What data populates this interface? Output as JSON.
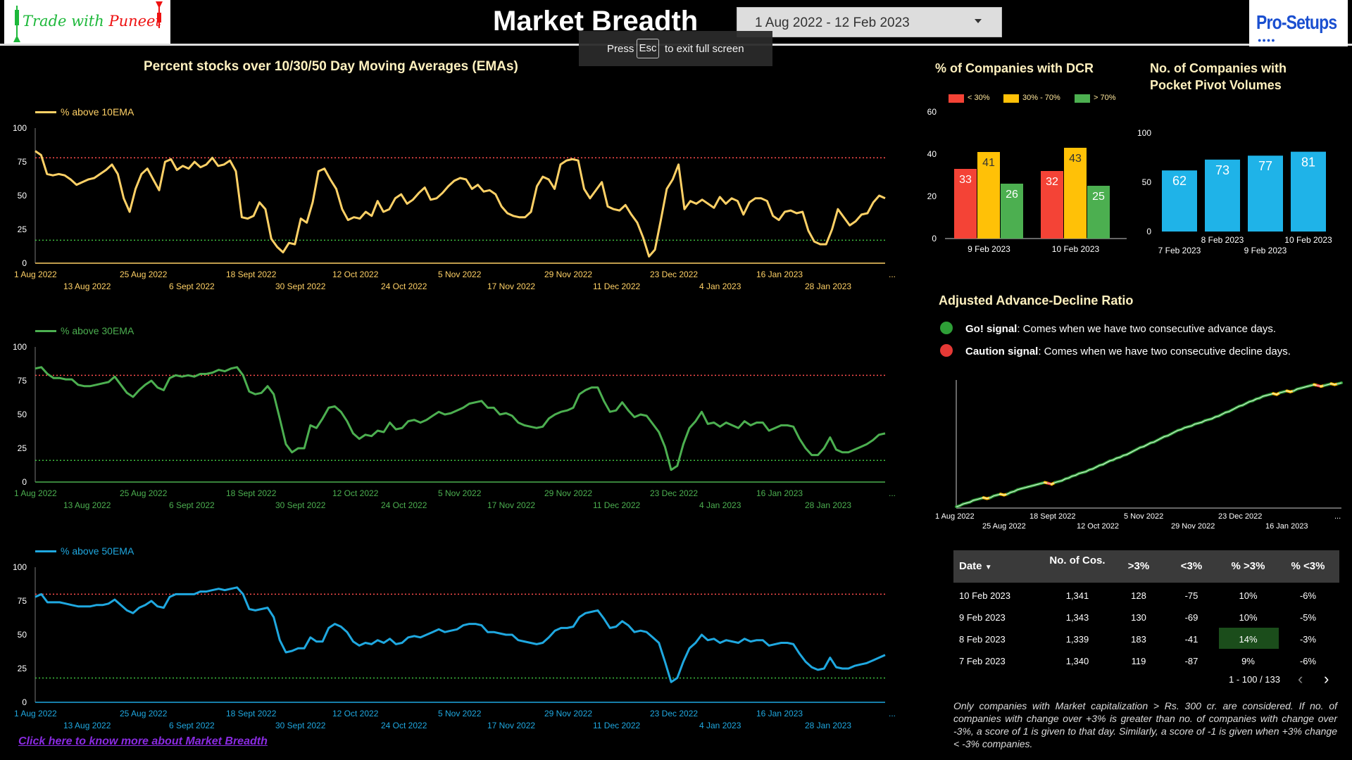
{
  "header": {
    "brand_part1": "Trade with ",
    "brand_part2": "Puneet",
    "title": "Market Breadth",
    "date_range": "1 Aug 2022 - 12 Feb 2023",
    "logo_text": "Pro-Setups",
    "logo_dots": "●●●●",
    "toast_press": "Press",
    "toast_key": "Esc",
    "toast_rest": "to exit full screen"
  },
  "ema_section": {
    "title": "Percent stocks over 10/30/50 Day Moving Averages (EMAs)"
  },
  "colors": {
    "ema10": "#ffd166",
    "ema30": "#4caf50",
    "ema50": "#1fa8e0",
    "upper_ref": "#ff4d4d",
    "lower_ref": "#3fbf3f",
    "dcr_low": "#f44336",
    "dcr_mid": "#ffc107",
    "dcr_high": "#4caf50",
    "ppv": "#1fb3e8",
    "go": "#2e9e37",
    "caution": "#e53935",
    "highlight": "#1b4d1b"
  },
  "chart_data": [
    {
      "id": "ema10",
      "type": "line",
      "series": [
        {
          "name": "% above 10EMA"
        }
      ],
      "ylim": [
        0,
        100
      ],
      "yticks": [
        "0",
        "25",
        "50",
        "75",
        "100"
      ],
      "upper_ref": 78,
      "lower_ref": 17,
      "x_labels_row1": [
        "1 Aug 2022",
        "25 Aug 2022",
        "18 Sept 2022",
        "12 Oct 2022",
        "5 Nov 2022",
        "29 Nov 2022",
        "23 Dec 2022",
        "16 Jan 2023",
        "..."
      ],
      "x_labels_row2": [
        "13 Aug 2022",
        "6 Sept 2022",
        "30 Sept 2022",
        "24 Oct 2022",
        "17 Nov 2022",
        "11 Dec 2022",
        "4 Jan 2023",
        "28 Jan 2023"
      ],
      "values": [
        83,
        80,
        66,
        65,
        66,
        65,
        62,
        58,
        60,
        62,
        63,
        66,
        69,
        73,
        66,
        48,
        38,
        55,
        66,
        70,
        62,
        54,
        75,
        77,
        69,
        72,
        70,
        75,
        71,
        73,
        78,
        72,
        73,
        76,
        68,
        34,
        33,
        35,
        45,
        40,
        18,
        12,
        8,
        15,
        14,
        33,
        30,
        45,
        68,
        70,
        62,
        55,
        40,
        32,
        34,
        33,
        38,
        35,
        46,
        38,
        40,
        48,
        51,
        44,
        47,
        52,
        56,
        47,
        48,
        52,
        57,
        61,
        63,
        62,
        55,
        58,
        53,
        54,
        51,
        42,
        37,
        35,
        34,
        34,
        38,
        57,
        64,
        62,
        55,
        73,
        76,
        77,
        76,
        55,
        48,
        54,
        60,
        42,
        40,
        39,
        43,
        36,
        30,
        19,
        5,
        10,
        32,
        55,
        62,
        73,
        40,
        46,
        44,
        47,
        44,
        41,
        49,
        44,
        48,
        46,
        36,
        45,
        48,
        48,
        46,
        35,
        32,
        38,
        39,
        37,
        38,
        24,
        16,
        14,
        14,
        25,
        40,
        34,
        28,
        31,
        36,
        37,
        45,
        50,
        48
      ]
    },
    {
      "id": "ema30",
      "type": "line",
      "series": [
        {
          "name": "% above 30EMA"
        }
      ],
      "ylim": [
        0,
        100
      ],
      "yticks": [
        "0",
        "25",
        "50",
        "75",
        "100"
      ],
      "upper_ref": 79,
      "lower_ref": 16,
      "x_labels_row1": [
        "1 Aug 2022",
        "25 Aug 2022",
        "18 Sept 2022",
        "12 Oct 2022",
        "5 Nov 2022",
        "29 Nov 2022",
        "23 Dec 2022",
        "16 Jan 2023",
        "..."
      ],
      "x_labels_row2": [
        "13 Aug 2022",
        "6 Sept 2022",
        "30 Sept 2022",
        "24 Oct 2022",
        "17 Nov 2022",
        "11 Dec 2022",
        "4 Jan 2023",
        "28 Jan 2023"
      ],
      "values": [
        84,
        85,
        80,
        77,
        77,
        76,
        76,
        72,
        71,
        71,
        72,
        73,
        74,
        78,
        72,
        66,
        63,
        68,
        72,
        75,
        70,
        68,
        77,
        79,
        78,
        79,
        78,
        80,
        80,
        81,
        83,
        82,
        84,
        85,
        79,
        67,
        65,
        66,
        71,
        65,
        47,
        28,
        22,
        25,
        25,
        42,
        40,
        47,
        55,
        56,
        52,
        45,
        36,
        32,
        35,
        34,
        38,
        37,
        44,
        39,
        40,
        45,
        46,
        44,
        46,
        49,
        52,
        50,
        51,
        53,
        55,
        58,
        59,
        60,
        55,
        55,
        50,
        51,
        49,
        44,
        42,
        41,
        40,
        41,
        47,
        50,
        52,
        53,
        55,
        65,
        68,
        70,
        70,
        60,
        52,
        53,
        59,
        53,
        48,
        50,
        49,
        43,
        37,
        26,
        9,
        12,
        28,
        40,
        45,
        52,
        43,
        44,
        41,
        44,
        42,
        40,
        45,
        42,
        44,
        44,
        38,
        40,
        42,
        42,
        41,
        32,
        25,
        20,
        20,
        25,
        33,
        24,
        22,
        22,
        24,
        26,
        28,
        31,
        35,
        36
      ]
    },
    {
      "id": "ema50",
      "type": "line",
      "series": [
        {
          "name": "% above 50EMA"
        }
      ],
      "ylim": [
        0,
        100
      ],
      "yticks": [
        "0",
        "25",
        "50",
        "75",
        "100"
      ],
      "upper_ref": 80,
      "lower_ref": 18,
      "x_labels_row1": [
        "1 Aug 2022",
        "25 Aug 2022",
        "18 Sept 2022",
        "12 Oct 2022",
        "5 Nov 2022",
        "29 Nov 2022",
        "23 Dec 2022",
        "16 Jan 2023",
        "..."
      ],
      "x_labels_row2": [
        "13 Aug 2022",
        "6 Sept 2022",
        "30 Sept 2022",
        "24 Oct 2022",
        "17 Nov 2022",
        "11 Dec 2022",
        "4 Jan 2023",
        "28 Jan 2023"
      ],
      "values": [
        78,
        80,
        74,
        74,
        74,
        73,
        72,
        71,
        71,
        71,
        72,
        72,
        73,
        76,
        72,
        68,
        66,
        70,
        72,
        75,
        71,
        70,
        78,
        80,
        80,
        80,
        80,
        82,
        82,
        83,
        84,
        83,
        84,
        85,
        80,
        69,
        68,
        69,
        70,
        63,
        46,
        37,
        38,
        40,
        40,
        48,
        45,
        45,
        55,
        58,
        56,
        52,
        45,
        42,
        44,
        43,
        46,
        44,
        47,
        43,
        44,
        48,
        49,
        48,
        50,
        52,
        54,
        52,
        53,
        54,
        57,
        58,
        58,
        57,
        52,
        52,
        51,
        50,
        50,
        46,
        45,
        44,
        43,
        44,
        48,
        53,
        55,
        55,
        56,
        63,
        66,
        67,
        68,
        62,
        55,
        56,
        60,
        57,
        52,
        53,
        52,
        48,
        44,
        30,
        15,
        18,
        30,
        40,
        44,
        50,
        46,
        47,
        44,
        46,
        45,
        44,
        47,
        45,
        46,
        46,
        42,
        43,
        44,
        44,
        43,
        36,
        30,
        26,
        24,
        25,
        33,
        26,
        25,
        25,
        27,
        28,
        29,
        31,
        33,
        35
      ]
    },
    {
      "id": "dcr",
      "type": "bar",
      "title": "% of Companies with DCR",
      "categories": [
        "9 Feb 2023",
        "10 Feb 2023"
      ],
      "ylim": [
        0,
        60
      ],
      "yticks": [
        "0",
        "20",
        "40",
        "60"
      ],
      "series": [
        {
          "name": "< 30%",
          "values": [
            33,
            32
          ]
        },
        {
          "name": "30% - 70%",
          "values": [
            41,
            43
          ]
        },
        {
          "name": "> 70%",
          "values": [
            26,
            25
          ]
        }
      ]
    },
    {
      "id": "ppv",
      "type": "bar",
      "title": "No. of Companies with Pocket Pivot Volumes",
      "categories": [
        "7 Feb 2023",
        "8 Feb 2023",
        "9 Feb 2023",
        "10 Feb 2023"
      ],
      "values": [
        62,
        73,
        77,
        81
      ],
      "ylim": [
        0,
        100
      ],
      "yticks": [
        "0",
        "50",
        "100"
      ]
    },
    {
      "id": "adr",
      "type": "line",
      "title": "Adjusted Advance-Decline Ratio",
      "x_labels_row1": [
        "1 Aug 2022",
        "18 Sept 2022",
        "5 Nov 2022",
        "23 Dec 2022",
        "..."
      ],
      "x_labels_row2": [
        "25 Aug 2022",
        "12 Oct 2022",
        "29 Nov 2022",
        "16 Jan 2023"
      ],
      "values": [
        0,
        1,
        3,
        4,
        5,
        7,
        8,
        9,
        10,
        9,
        10,
        12,
        13,
        14,
        13,
        14,
        16,
        17,
        19,
        20,
        21,
        22,
        23,
        24,
        25,
        26,
        27,
        26,
        25,
        27,
        28,
        29,
        31,
        32,
        34,
        35,
        37,
        38,
        39,
        41,
        42,
        44,
        46,
        47,
        49,
        51,
        52,
        54,
        55,
        57,
        58,
        60,
        62,
        64,
        66,
        67,
        69,
        71,
        72,
        74,
        76,
        78,
        79,
        81,
        83,
        85,
        86,
        88,
        89,
        90,
        92,
        93,
        94,
        96,
        97,
        98,
        100,
        101,
        103,
        105,
        106,
        108,
        110,
        112,
        113,
        115,
        117,
        118,
        120,
        121,
        123,
        124,
        125,
        126,
        125,
        127,
        128,
        129,
        128,
        129,
        131,
        132,
        133,
        134,
        135,
        136,
        135,
        134,
        135,
        136,
        137,
        136,
        137,
        138
      ]
    }
  ],
  "dcr_chart": {
    "title": "% of Companies with DCR",
    "legend": [
      "< 30%",
      "30% - 70%",
      "> 70%"
    ]
  },
  "ppv_chart": {
    "title_line1": "No. of Companies with",
    "title_line2": "Pocket Pivot Volumes"
  },
  "adr_section": {
    "title": "Adjusted Advance-Decline Ratio",
    "go_label": "Go! signal",
    "go_text": ": Comes when we have two consecutive advance days.",
    "caution_label": "Caution signal",
    "caution_text": ": Comes when we have two consecutive decline days."
  },
  "table": {
    "headers": [
      "Date",
      "No. of Cos.",
      ">3%",
      "<3%",
      "% >3%",
      "% <3%"
    ],
    "sort_indicator": "▼",
    "rows": [
      [
        "10 Feb 2023",
        "1,341",
        "128",
        "-75",
        "10%",
        "-6%"
      ],
      [
        "9 Feb 2023",
        "1,343",
        "130",
        "-69",
        "10%",
        "-5%"
      ],
      [
        "8 Feb 2023",
        "1,339",
        "183",
        "-41",
        "14%",
        "-3%"
      ],
      [
        "7 Feb 2023",
        "1,340",
        "119",
        "-87",
        "9%",
        "-6%"
      ]
    ],
    "pager": "1 - 100 / 133",
    "prev": "‹",
    "next": "›"
  },
  "footnote": "Only companies with Market capitalization > Rs. 300 cr. are considered. If no. of companies with change over +3% is greater than no. of companies with change over -3%, a score of 1 is given to that day. Similarly, a score of -1 is given when +3% change < -3% companies.",
  "link_text": "Click here to know more about Market Breadth"
}
